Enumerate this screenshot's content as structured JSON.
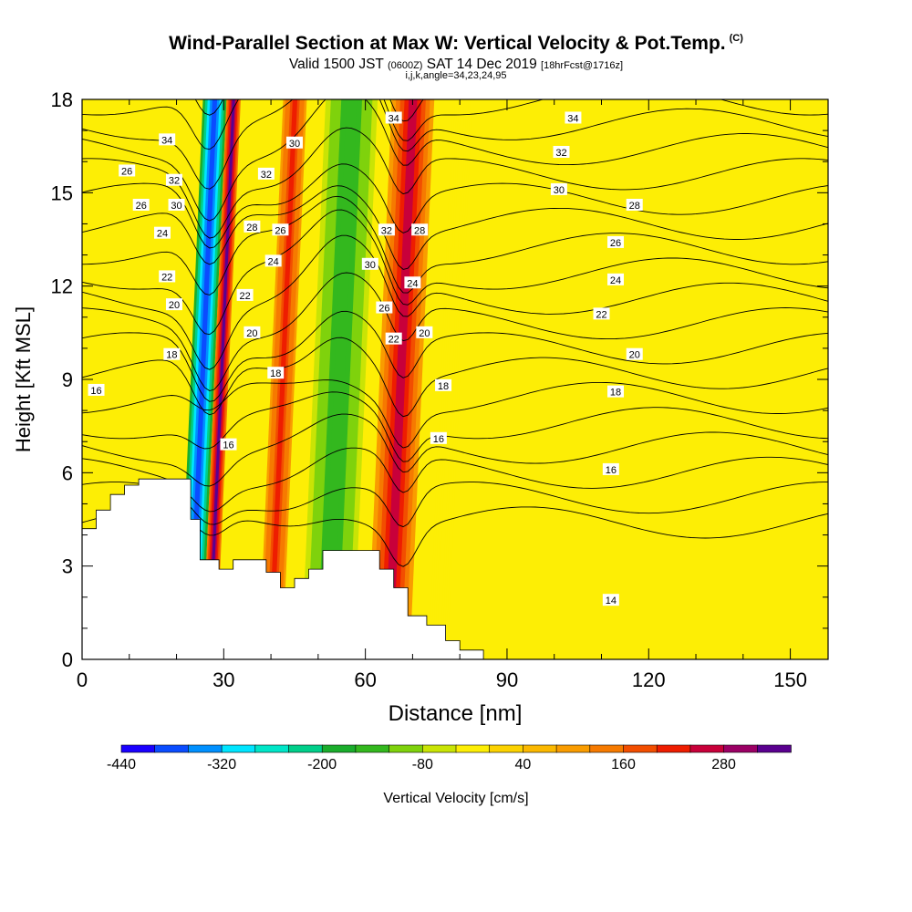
{
  "title": {
    "main": "Wind-Parallel Section at Max W: Vertical Velocity & Pot.Temp.",
    "copyright": "(C)",
    "valid_prefix": "Valid 1500 JST",
    "valid_z": "(0600Z)",
    "valid_date": "SAT 14 Dec 2019",
    "valid_fcst": "[18hrFcst@1716z]",
    "indices": "i,j,k,angle=34,23,24,95"
  },
  "colors": {
    "background_fill": "#fdee05",
    "palette": [
      "#1a00ff",
      "#0a4cff",
      "#0090ff",
      "#00e5ff",
      "#00e6c8",
      "#00cf8a",
      "#1aad2c",
      "#33b81e",
      "#7fd20c",
      "#c9e405",
      "#fdee05",
      "#fcd200",
      "#fbb800",
      "#f99c00",
      "#f67a00",
      "#f24e00",
      "#ee1d00",
      "#c8003a",
      "#9b0065",
      "#5a008f"
    ],
    "terrain": "#ffffff",
    "contour": "#000000"
  },
  "chart_data": {
    "type": "heatmap",
    "xlabel": "Distance [nm]",
    "ylabel": "Height [Kft MSL]",
    "xlim": [
      0,
      158
    ],
    "ylim": [
      0,
      18
    ],
    "xticks": [
      0,
      30,
      60,
      90,
      120,
      150
    ],
    "yticks": [
      0,
      3,
      6,
      9,
      12,
      15,
      18
    ],
    "colorbar": {
      "label": "Vertical Velocity [cm/s]",
      "min": -440,
      "max": 360,
      "step": 40,
      "tick_labels": [
        "-440",
        "-320",
        "-200",
        "-80",
        "40",
        "160",
        "280"
      ]
    },
    "velocity_bands": [
      {
        "x": [
          23,
          28
        ],
        "w": -380
      },
      {
        "x": [
          28,
          31
        ],
        "w": 320
      },
      {
        "x": [
          40,
          45
        ],
        "w": 200
      },
      {
        "x": [
          49,
          60
        ],
        "w": -140
      },
      {
        "x": [
          63,
          72
        ],
        "w": 240
      },
      {
        "x": [
          76,
          80
        ],
        "w": -40
      }
    ],
    "terrain_profile": [
      [
        0,
        4.2
      ],
      [
        3,
        4.2
      ],
      [
        3,
        4.8
      ],
      [
        6,
        4.8
      ],
      [
        6,
        5.3
      ],
      [
        9,
        5.3
      ],
      [
        9,
        5.6
      ],
      [
        12,
        5.6
      ],
      [
        12,
        5.8
      ],
      [
        23,
        5.8
      ],
      [
        23,
        4.5
      ],
      [
        25,
        4.5
      ],
      [
        25,
        3.2
      ],
      [
        29,
        3.2
      ],
      [
        29,
        2.9
      ],
      [
        32,
        2.9
      ],
      [
        32,
        3.2
      ],
      [
        39,
        3.2
      ],
      [
        39,
        2.8
      ],
      [
        42,
        2.8
      ],
      [
        42,
        2.3
      ],
      [
        45,
        2.3
      ],
      [
        45,
        2.6
      ],
      [
        48,
        2.6
      ],
      [
        48,
        2.9
      ],
      [
        51,
        2.9
      ],
      [
        51,
        3.5
      ],
      [
        63,
        3.5
      ],
      [
        63,
        2.9
      ],
      [
        66,
        2.9
      ],
      [
        66,
        2.3
      ],
      [
        69,
        2.3
      ],
      [
        69,
        1.4
      ],
      [
        73,
        1.4
      ],
      [
        73,
        1.1
      ],
      [
        77,
        1.1
      ],
      [
        77,
        0.6
      ],
      [
        80,
        0.6
      ],
      [
        80,
        0.3
      ],
      [
        85,
        0.3
      ]
    ],
    "contour_labels": [
      {
        "x": 3,
        "y": 8.65,
        "text": "16"
      },
      {
        "x": 9.5,
        "y": 15.7,
        "text": "26"
      },
      {
        "x": 12.5,
        "y": 14.6,
        "text": "26"
      },
      {
        "x": 18,
        "y": 16.7,
        "text": "34"
      },
      {
        "x": 19.5,
        "y": 15.4,
        "text": "32"
      },
      {
        "x": 20,
        "y": 14.6,
        "text": "30"
      },
      {
        "x": 17,
        "y": 13.7,
        "text": "24"
      },
      {
        "x": 18,
        "y": 12.3,
        "text": "22"
      },
      {
        "x": 19.5,
        "y": 11.4,
        "text": "20"
      },
      {
        "x": 19,
        "y": 9.8,
        "text": "18"
      },
      {
        "x": 31,
        "y": 6.9,
        "text": "16"
      },
      {
        "x": 36,
        "y": 13.9,
        "text": "28"
      },
      {
        "x": 39,
        "y": 15.6,
        "text": "32"
      },
      {
        "x": 45,
        "y": 16.6,
        "text": "30"
      },
      {
        "x": 42,
        "y": 13.8,
        "text": "26"
      },
      {
        "x": 40.5,
        "y": 12.8,
        "text": "24"
      },
      {
        "x": 34.5,
        "y": 11.7,
        "text": "22"
      },
      {
        "x": 36,
        "y": 10.5,
        "text": "20"
      },
      {
        "x": 41,
        "y": 9.2,
        "text": "18"
      },
      {
        "x": 66,
        "y": 17.4,
        "text": "34"
      },
      {
        "x": 64.5,
        "y": 13.8,
        "text": "32"
      },
      {
        "x": 71.5,
        "y": 13.8,
        "text": "28"
      },
      {
        "x": 61,
        "y": 12.7,
        "text": "30"
      },
      {
        "x": 70,
        "y": 12.1,
        "text": "24"
      },
      {
        "x": 64,
        "y": 11.3,
        "text": "26"
      },
      {
        "x": 66,
        "y": 10.3,
        "text": "22"
      },
      {
        "x": 72.5,
        "y": 10.5,
        "text": "20"
      },
      {
        "x": 76.5,
        "y": 8.8,
        "text": "18"
      },
      {
        "x": 75.5,
        "y": 7.1,
        "text": "16"
      },
      {
        "x": 104,
        "y": 17.4,
        "text": "34"
      },
      {
        "x": 101.5,
        "y": 16.3,
        "text": "32"
      },
      {
        "x": 101,
        "y": 15.1,
        "text": "30"
      },
      {
        "x": 117,
        "y": 14.6,
        "text": "28"
      },
      {
        "x": 113,
        "y": 13.4,
        "text": "26"
      },
      {
        "x": 113,
        "y": 12.2,
        "text": "24"
      },
      {
        "x": 110,
        "y": 11.1,
        "text": "22"
      },
      {
        "x": 117,
        "y": 9.8,
        "text": "20"
      },
      {
        "x": 113,
        "y": 8.6,
        "text": "18"
      },
      {
        "x": 112,
        "y": 6.1,
        "text": "16"
      },
      {
        "x": 112,
        "y": 1.9,
        "text": "14"
      }
    ]
  }
}
